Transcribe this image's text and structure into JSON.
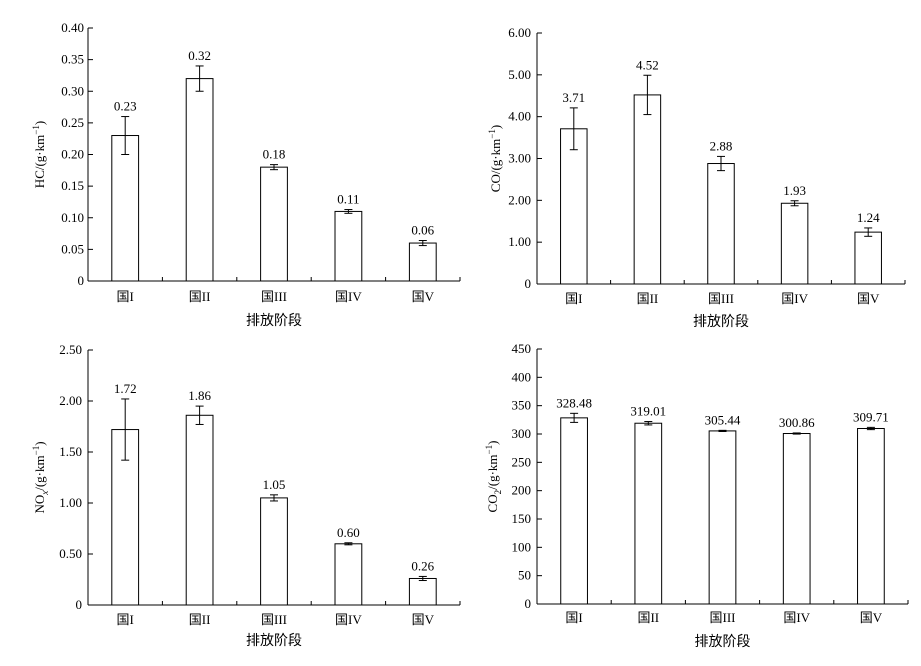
{
  "chart_data": [
    {
      "type": "bar",
      "categories": [
        "国I",
        "国II",
        "国III",
        "国IV",
        "国V"
      ],
      "values": [
        0.23,
        0.32,
        0.18,
        0.11,
        0.06
      ],
      "error": [
        0.03,
        0.02,
        0.004,
        0.003,
        0.004
      ],
      "data_labels": [
        "0.23",
        "0.32",
        "0.18",
        "0.11",
        "0.06"
      ],
      "ylabel": "HC/(g·km⁻¹)",
      "xlabel": "排放阶段",
      "ylim": [
        0,
        0.4
      ],
      "yticks": [
        0,
        0.05,
        0.1,
        0.15,
        0.2,
        0.25,
        0.3,
        0.35,
        0.4
      ],
      "ytick_labels": [
        "0",
        "0.05",
        "0.10",
        "0.15",
        "0.20",
        "0.25",
        "0.30",
        "0.35",
        "0.40"
      ],
      "grid": false
    },
    {
      "type": "bar",
      "categories": [
        "国I",
        "国II",
        "国III",
        "国IV",
        "国V"
      ],
      "values": [
        3.71,
        4.52,
        2.88,
        1.93,
        1.24
      ],
      "error": [
        0.5,
        0.47,
        0.17,
        0.06,
        0.1
      ],
      "data_labels": [
        "3.71",
        "4.52",
        "2.88",
        "1.93",
        "1.24"
      ],
      "ylabel": "CO/(g·km⁻¹)",
      "xlabel": "排放阶段",
      "ylim": [
        0,
        6
      ],
      "yticks": [
        0,
        1,
        2,
        3,
        4,
        5,
        6
      ],
      "ytick_labels": [
        "0",
        "1.00",
        "2.00",
        "3.00",
        "4.00",
        "5.00",
        "6.00"
      ],
      "grid": false
    },
    {
      "type": "bar",
      "categories": [
        "国I",
        "国II",
        "国III",
        "国IV",
        "国V"
      ],
      "values": [
        1.72,
        1.86,
        1.05,
        0.6,
        0.26
      ],
      "error": [
        0.3,
        0.09,
        0.03,
        0.01,
        0.02
      ],
      "data_labels": [
        "1.72",
        "1.86",
        "1.05",
        "0.60",
        "0.26"
      ],
      "ylabel": "NOₓ/(g·km⁻¹)",
      "xlabel": "排放阶段",
      "ylim": [
        0,
        2.5
      ],
      "yticks": [
        0,
        0.5,
        1,
        1.5,
        2,
        2.5
      ],
      "ytick_labels": [
        "0",
        "0.50",
        "1.00",
        "1.50",
        "2.00",
        "2.50"
      ],
      "grid": false
    },
    {
      "type": "bar",
      "categories": [
        "国I",
        "国II",
        "国III",
        "国IV",
        "国V"
      ],
      "values": [
        328.48,
        319.01,
        305.44,
        300.86,
        309.71
      ],
      "error": [
        8,
        3,
        1,
        1,
        2
      ],
      "data_labels": [
        "328.48",
        "319.01",
        "305.44",
        "300.86",
        "309.71"
      ],
      "ylabel": "CO₂/(g·km⁻¹)",
      "xlabel": "排放阶段",
      "ylim": [
        0,
        450
      ],
      "yticks": [
        0,
        50,
        100,
        150,
        200,
        250,
        300,
        350,
        400,
        450
      ],
      "ytick_labels": [
        "0",
        "50",
        "100",
        "150",
        "200",
        "250",
        "300",
        "350",
        "400",
        "450"
      ],
      "grid": false
    }
  ]
}
